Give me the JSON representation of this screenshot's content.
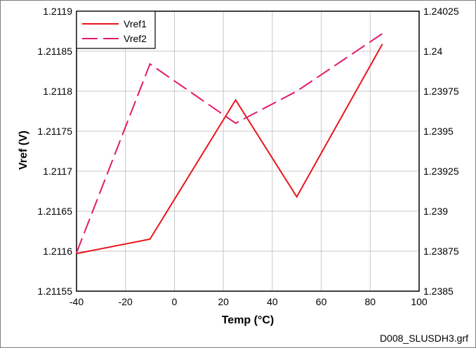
{
  "chart_data": {
    "type": "line",
    "title": "",
    "xlabel": "Temp (°C)",
    "ylabel": "Vref (V)",
    "xlim": [
      -40,
      100
    ],
    "ylim_left": [
      1.21155,
      1.2119
    ],
    "ylim_right": [
      1.2385,
      1.24025
    ],
    "x_ticks": [
      -40,
      -20,
      0,
      20,
      40,
      60,
      80,
      100
    ],
    "x_tick_labels": [
      "-40",
      "-20",
      "0",
      "20",
      "40",
      "60",
      "80",
      "100"
    ],
    "y_left_ticks": [
      1.21155,
      1.2116,
      1.21165,
      1.2117,
      1.21175,
      1.2118,
      1.21185,
      1.2119
    ],
    "y_left_tick_labels": [
      "1.21155",
      "1.2116",
      "1.21165",
      "1.2117",
      "1.21175",
      "1.2118",
      "1.21185",
      "1.2119"
    ],
    "y_right_ticks": [
      1.2385,
      1.23875,
      1.239,
      1.23925,
      1.2395,
      1.23975,
      1.24,
      1.24025
    ],
    "y_right_tick_labels": [
      "1.2385",
      "1.23875",
      "1.239",
      "1.23925",
      "1.2395",
      "1.23975",
      "1.24",
      "1.24025"
    ],
    "grid": true,
    "legend_position": "top-left",
    "series": [
      {
        "name": "Vref1",
        "axis": "left",
        "style": "solid",
        "color": "#e8161d",
        "x": [
          -40,
          -10,
          25,
          50,
          85
        ],
        "y": [
          1.211597,
          1.211615,
          1.211789,
          1.211668,
          1.211859
        ]
      },
      {
        "name": "Vref2",
        "axis": "right",
        "style": "dashed",
        "color": "#e21a6c",
        "x": [
          -40,
          -10,
          25,
          50,
          85
        ],
        "y": [
          1.23874,
          1.23992,
          1.23955,
          1.23975,
          1.24011
        ]
      }
    ],
    "footer": "D008_SLUSDH3.grf"
  }
}
